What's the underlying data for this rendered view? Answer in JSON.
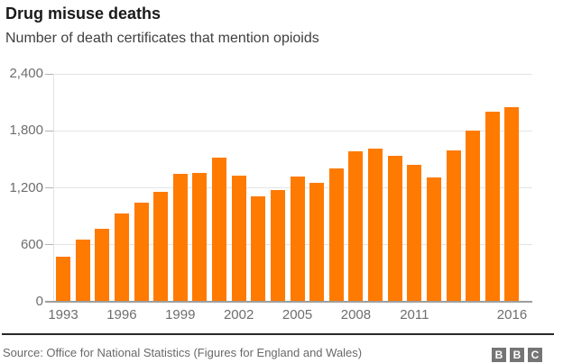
{
  "header": {
    "title": "Drug misuse deaths",
    "subtitle": "Number of death certificates that mention opioids"
  },
  "chart_data": {
    "type": "bar",
    "title": "Drug misuse deaths",
    "subtitle": "Number of death certificates that mention opioids",
    "categories": [
      1993,
      1994,
      1995,
      1996,
      1997,
      1998,
      1999,
      2000,
      2001,
      2002,
      2003,
      2004,
      2005,
      2006,
      2007,
      2008,
      2009,
      2010,
      2011,
      2012,
      2013,
      2014,
      2015,
      2016
    ],
    "values": [
      475,
      655,
      770,
      925,
      1045,
      1160,
      1345,
      1355,
      1520,
      1330,
      1110,
      1175,
      1320,
      1250,
      1405,
      1585,
      1610,
      1535,
      1445,
      1310,
      1595,
      1800,
      2005,
      2050
    ],
    "x_tick_labels": [
      "1993",
      "1996",
      "1999",
      "2002",
      "2005",
      "2008",
      "2011",
      "2016"
    ],
    "y_ticks": [
      0,
      600,
      1200,
      1800,
      2400
    ],
    "y_tick_labels": [
      "0",
      "600",
      "1,200",
      "1,800",
      "2,400"
    ],
    "xlabel": "",
    "ylabel": "",
    "ylim": [
      0,
      2400
    ],
    "grid": "horizontal-only",
    "legend": "none",
    "bar_color": "#ff7a00"
  },
  "footer": {
    "source": "Source: Office for National Statistics (Figures for England and Wales)",
    "logo_letters": [
      "B",
      "B",
      "C"
    ]
  },
  "colors": {
    "bar": "#ff7a00",
    "title_text": "#1a1a1a",
    "subtitle_text": "#404040",
    "tick_label": "#6e6e6e",
    "gridline": "#e3e3e3",
    "axis_line": "#9e9e9e",
    "separator": "#282828",
    "source_text": "#696969",
    "logo_block": "#757575",
    "background": "#ffffff"
  }
}
